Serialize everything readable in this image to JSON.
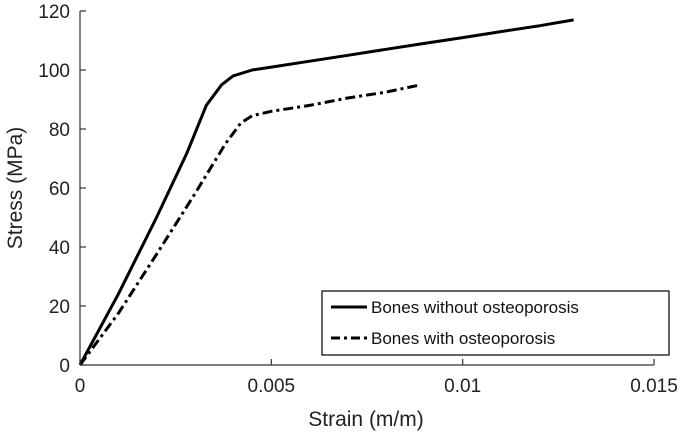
{
  "chart_data": {
    "type": "line",
    "xlabel": "Strain (m/m)",
    "ylabel": "Stress (MPa)",
    "xlim": [
      0,
      0.015
    ],
    "ylim": [
      0,
      120
    ],
    "xticks": [
      0,
      0.005,
      0.01,
      0.015
    ],
    "xtick_labels": [
      "0",
      "0.005",
      "0.01",
      "0.015"
    ],
    "yticks": [
      0,
      20,
      40,
      60,
      80,
      100,
      120
    ],
    "ytick_labels": [
      "0",
      "20",
      "40",
      "60",
      "80",
      "100",
      "120"
    ],
    "grid": false,
    "legend_position": "bottom-right",
    "series": [
      {
        "name": "Bones without osteoporosis",
        "style": "solid",
        "color": "#000000",
        "x": [
          0,
          0.001,
          0.002,
          0.0028,
          0.0033,
          0.0037,
          0.004,
          0.0045,
          0.005,
          0.006,
          0.007,
          0.008,
          0.009,
          0.01,
          0.011,
          0.012,
          0.0129
        ],
        "y": [
          0,
          24,
          50,
          72,
          88,
          95,
          98,
          100,
          101,
          103,
          105,
          107,
          109,
          111,
          113,
          115,
          117
        ]
      },
      {
        "name": "Bones with osteoporosis",
        "style": "dashdot",
        "color": "#000000",
        "x": [
          0,
          0.001,
          0.002,
          0.003,
          0.0038,
          0.0042,
          0.0045,
          0.005,
          0.006,
          0.007,
          0.008,
          0.0089
        ],
        "y": [
          0,
          17.5,
          37.5,
          58,
          75,
          82,
          84.5,
          86,
          88,
          90.5,
          92.5,
          95
        ]
      }
    ]
  }
}
